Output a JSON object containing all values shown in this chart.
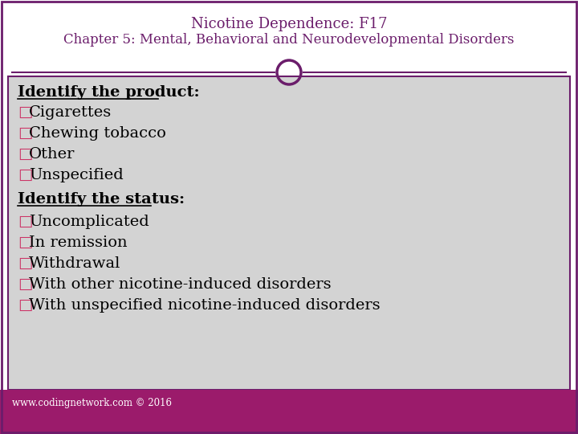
{
  "title_line1": "Nicotine Dependence: F17",
  "title_line2": "Chapter 5: Mental, Behavioral and Neurodevelopmental Disorders",
  "title_color": "#6B1D6B",
  "header_bg": "#ffffff",
  "body_bg": "#d3d3d3",
  "footer_bg": "#9B1B6B",
  "footer_text": "www.codingnetwork.com © 2016",
  "footer_text_color": "#ffffff",
  "border_color": "#6B1D6B",
  "circle_color": "#6B1D6B",
  "heading_color": "#000000",
  "bullet_color": "#CC3366",
  "text_color": "#000000",
  "section1_heading": "Identify the product:",
  "section2_heading": "Identify the status:",
  "items_product": [
    "□Cigarettes",
    "□Chewing tobacco",
    "□Other",
    "□Unspecified"
  ],
  "items_status": [
    "□Uncomplicated",
    "□In remission",
    "□Withdrawal",
    "□With other nicotine-induced disorders",
    "□With unspecified nicotine-induced disorders"
  ]
}
